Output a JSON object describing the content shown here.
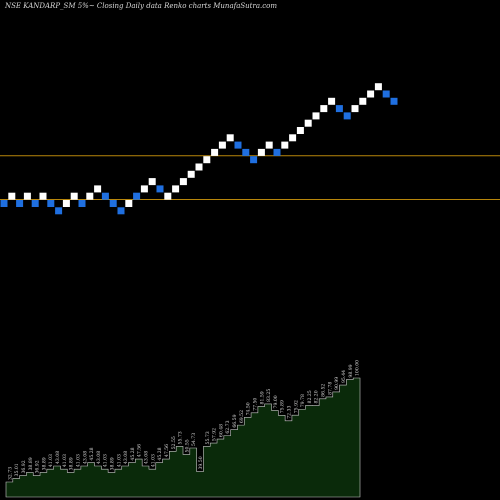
{
  "chart_data": {
    "type": "renko",
    "title": "NSE KANDARP_SM 5%~  Closing Daily data  Renko  charts MunafaSutra.com",
    "colors": {
      "up_brick": "#ffffff",
      "down_brick": "#1f6fe0",
      "reference_line": "#b8860b",
      "volume_fill": "#0a2a0a",
      "volume_stroke": "#c8c8c8",
      "background": "#000000"
    },
    "bricks": [
      {
        "dir": "down",
        "level": 0
      },
      {
        "dir": "up",
        "level": 1
      },
      {
        "dir": "down",
        "level": 0
      },
      {
        "dir": "up",
        "level": 1
      },
      {
        "dir": "down",
        "level": 0
      },
      {
        "dir": "up",
        "level": 1
      },
      {
        "dir": "down",
        "level": 0
      },
      {
        "dir": "down",
        "level": -1
      },
      {
        "dir": "up",
        "level": 0
      },
      {
        "dir": "up",
        "level": 1
      },
      {
        "dir": "down",
        "level": 0
      },
      {
        "dir": "up",
        "level": 1
      },
      {
        "dir": "up",
        "level": 2
      },
      {
        "dir": "down",
        "level": 1
      },
      {
        "dir": "down",
        "level": 0
      },
      {
        "dir": "down",
        "level": -1
      },
      {
        "dir": "up",
        "level": 0
      },
      {
        "dir": "down",
        "level": 1
      },
      {
        "dir": "up",
        "level": 2
      },
      {
        "dir": "up",
        "level": 3
      },
      {
        "dir": "down",
        "level": 2
      },
      {
        "dir": "up",
        "level": 1
      },
      {
        "dir": "up",
        "level": 2
      },
      {
        "dir": "up",
        "level": 3
      },
      {
        "dir": "up",
        "level": 4
      },
      {
        "dir": "up",
        "level": 5
      },
      {
        "dir": "up",
        "level": 6
      },
      {
        "dir": "up",
        "level": 7
      },
      {
        "dir": "up",
        "level": 8
      },
      {
        "dir": "up",
        "level": 9
      },
      {
        "dir": "down",
        "level": 8
      },
      {
        "dir": "down",
        "level": 7
      },
      {
        "dir": "down",
        "level": 6
      },
      {
        "dir": "up",
        "level": 7
      },
      {
        "dir": "up",
        "level": 8
      },
      {
        "dir": "down",
        "level": 7
      },
      {
        "dir": "up",
        "level": 8
      },
      {
        "dir": "up",
        "level": 9
      },
      {
        "dir": "up",
        "level": 10
      },
      {
        "dir": "up",
        "level": 11
      },
      {
        "dir": "up",
        "level": 12
      },
      {
        "dir": "up",
        "level": 13
      },
      {
        "dir": "up",
        "level": 14
      },
      {
        "dir": "down",
        "level": 13
      },
      {
        "dir": "down",
        "level": 12
      },
      {
        "dir": "up",
        "level": 13
      },
      {
        "dir": "up",
        "level": 14
      },
      {
        "dir": "up",
        "level": 15
      },
      {
        "dir": "up",
        "level": 16
      },
      {
        "dir": "down",
        "level": 15
      },
      {
        "dir": "down",
        "level": 14
      }
    ],
    "reference_levels": [
      0,
      6
    ],
    "price_labels": [
      "32.73",
      "35.01",
      "36.92",
      "38.89",
      "36.92",
      "38.89",
      "41.03",
      "43.08",
      "41.03",
      "38.89",
      "41.03",
      "43.08",
      "45.28",
      "43.08",
      "41.03",
      "38.89",
      "41.03",
      "43.08",
      "45.28",
      "47.56",
      "43.08",
      "41.03",
      "45.28",
      "47.56",
      "52.55",
      "55.73",
      "50.55",
      "54.73",
      "39.50",
      "55.73",
      "57.92",
      "60.48",
      "62.73",
      "66.59",
      "69.52",
      "74.50",
      "77.50",
      "81.59",
      "83.25",
      "79.00",
      "75.89",
      "72.33",
      "75.92",
      "79.78",
      "82.25",
      "82.20",
      "86.52",
      "87.78",
      "90.99",
      "95.44",
      "98.99",
      "100.00"
    ]
  }
}
